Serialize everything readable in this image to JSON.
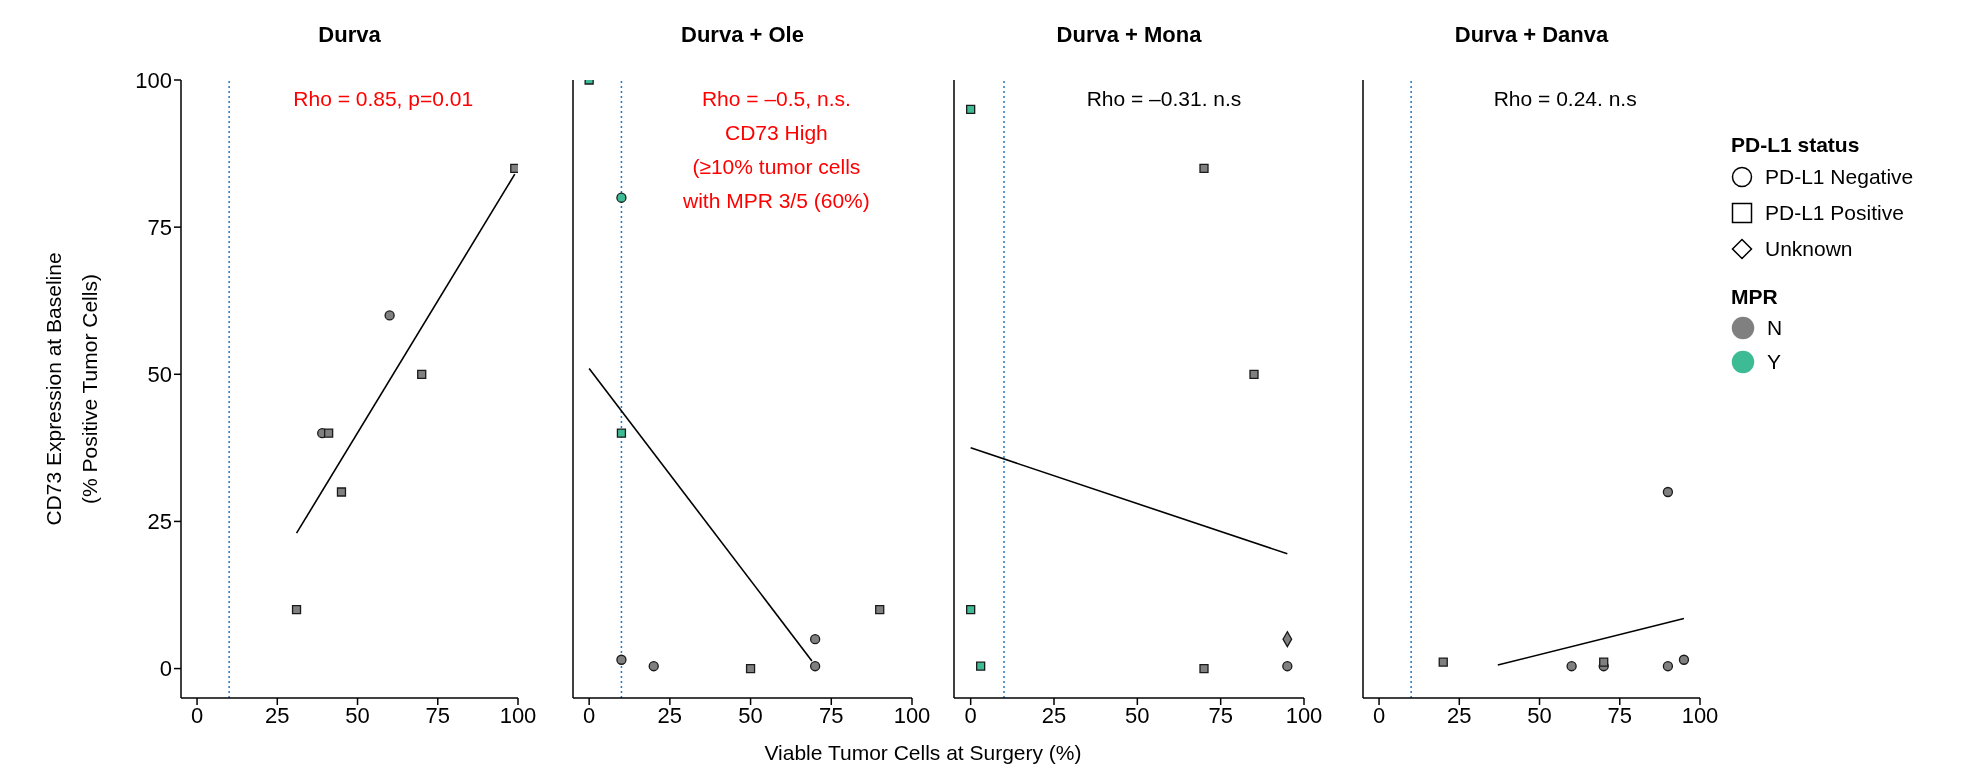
{
  "chart_data": [
    {
      "type": "scatter",
      "title": "Durva",
      "ylabel": "CD73 Expression at Baseline\n(% Positive Tumor Cells)",
      "xlim": [
        -5,
        100
      ],
      "xticks": [
        0,
        25,
        50,
        75,
        100
      ],
      "ylim": [
        -5,
        100
      ],
      "yticks": [
        0,
        25,
        50,
        75,
        100
      ],
      "annotations": [
        "Rho = 0.85, p=0.01"
      ],
      "ref_lines": [
        {
          "axis": "x",
          "value": 10,
          "color": "#1f78c8",
          "line_style": "dotted"
        }
      ],
      "series": [
        {
          "marker": "circle",
          "x": [
            60,
            39
          ],
          "values": [
            60,
            40
          ],
          "colors": [
            "#808080",
            "#808080"
          ]
        },
        {
          "marker": "square",
          "x": [
            99,
            70,
            41,
            45,
            31
          ],
          "values": [
            85,
            50,
            40,
            30,
            10
          ],
          "colors": [
            "#808080",
            "#808080",
            "#808080",
            "#808080",
            "#808080"
          ]
        },
        {
          "type": "line",
          "color": "#000000",
          "x": [
            31,
            99
          ],
          "values": [
            23,
            84
          ]
        }
      ]
    },
    {
      "type": "scatter",
      "title": "Durva + Ole",
      "xlabel": "Viable Tumor Cells at Surgery (%)",
      "xlim": [
        -5,
        100
      ],
      "xticks": [
        0,
        25,
        50,
        75,
        100
      ],
      "ylim": [
        -5,
        100
      ],
      "yticks": [
        0,
        25,
        50,
        75,
        100
      ],
      "tick_labels": "x",
      "annotations": [
        "Rho = –0.5, n.s.\nCD73 High\n(≥10% tumor cells\nwith MPR 3/5 (60%)"
      ],
      "ref_lines": [
        {
          "axis": "x",
          "value": 10,
          "color": "#1f78c8",
          "line_style": "dotted"
        }
      ],
      "series": [
        {
          "marker": "circle",
          "x": [
            10,
            10,
            20,
            70,
            70
          ],
          "values": [
            80,
            1.5,
            0.4,
            5,
            0.4
          ],
          "colors": [
            "#3dbb94",
            "#808080",
            "#808080",
            "#808080",
            "#808080"
          ]
        },
        {
          "marker": "square",
          "x": [
            0,
            10,
            50,
            90
          ],
          "values": [
            100,
            40,
            0,
            10
          ],
          "colors": [
            "#3dbb94",
            "#3dbb94",
            "#808080",
            "#808080"
          ]
        },
        {
          "type": "line",
          "color": "#000000",
          "x": [
            0,
            69
          ],
          "values": [
            51,
            1.3
          ]
        }
      ]
    },
    {
      "type": "scatter",
      "title": "Durva + Mona",
      "xlim": [
        -5,
        100
      ],
      "xticks": [
        0,
        25,
        50,
        75,
        100
      ],
      "ylim": [
        -5,
        100
      ],
      "yticks": [
        0,
        25,
        50,
        75,
        100
      ],
      "tick_labels": "x",
      "annotations": [
        "Rho = –0.31. n.s"
      ],
      "ref_lines": [
        {
          "axis": "x",
          "value": 10,
          "color": "#1f78c8",
          "line_style": "dotted"
        }
      ],
      "series": [
        {
          "marker": "circle",
          "x": [
            95
          ],
          "values": [
            0.4
          ],
          "colors": [
            "#808080"
          ]
        },
        {
          "marker": "square",
          "x": [
            0,
            70,
            85,
            0,
            3,
            70
          ],
          "values": [
            95,
            85,
            50,
            10,
            0.4,
            0
          ],
          "colors": [
            "#3dbb94",
            "#808080",
            "#808080",
            "#3dbb94",
            "#3dbb94",
            "#808080"
          ]
        },
        {
          "marker": "diamond",
          "x": [
            95
          ],
          "values": [
            5
          ],
          "colors": [
            "#808080"
          ]
        },
        {
          "type": "line",
          "color": "#000000",
          "x": [
            0,
            95
          ],
          "values": [
            37.5,
            19.5
          ]
        }
      ]
    },
    {
      "type": "scatter",
      "title": "Durva + Danva",
      "xlim": [
        -5,
        100
      ],
      "xticks": [
        0,
        25,
        50,
        75,
        100
      ],
      "ylim": [
        -5,
        100
      ],
      "yticks": [
        0,
        25,
        50,
        75,
        100
      ],
      "tick_labels": "x",
      "legend": "right",
      "legend_title": [
        "PD-L1 status",
        "MPR"
      ],
      "annotations": [
        "Rho = 0.24. n.s"
      ],
      "ref_lines": [
        {
          "axis": "x",
          "value": 10,
          "color": "#1f78c8",
          "line_style": "dotted"
        }
      ],
      "series": [
        {
          "name": "PD-L1 Negative",
          "marker": "circle",
          "x": [
            60,
            70,
            90,
            95,
            90
          ],
          "values": [
            0.4,
            0.4,
            0.4,
            1.5,
            30
          ],
          "colors": [
            "#808080",
            "#808080",
            "#808080",
            "#808080",
            "#808080"
          ]
        },
        {
          "name": "PD-L1 Positive",
          "marker": "square",
          "x": [
            20,
            70
          ],
          "values": [
            1.1,
            1.1
          ],
          "colors": [
            "#808080",
            "#808080"
          ]
        },
        {
          "name": "Unknown",
          "marker": "diamond"
        },
        {
          "name": "N",
          "color": "#808080"
        },
        {
          "name": "Y",
          "color": "#3dbb94"
        },
        {
          "type": "line",
          "color": "#000000",
          "x": [
            37,
            95
          ],
          "values": [
            0.6,
            8.5
          ]
        }
      ]
    }
  ]
}
